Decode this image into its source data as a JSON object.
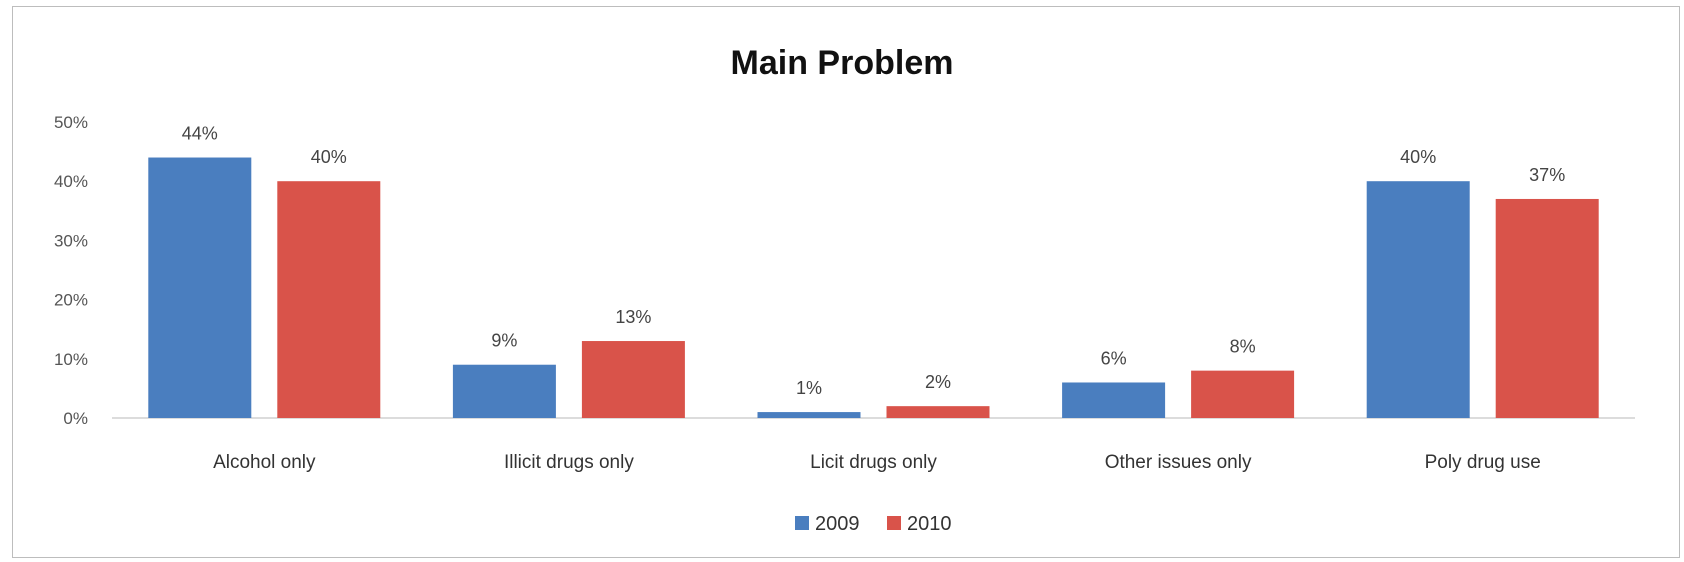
{
  "chart_data": {
    "type": "bar",
    "title": "Main Problem",
    "categories": [
      "Alcohol only",
      "Illicit drugs only",
      "Licit drugs only",
      "Other  issues only",
      "Poly drug use"
    ],
    "series": [
      {
        "name": "2009",
        "color": "#4a7ebf",
        "values": [
          44,
          9,
          1,
          6,
          40
        ],
        "labels": [
          "44%",
          "9%",
          "1%",
          "6%",
          "40%"
        ]
      },
      {
        "name": "2010",
        "color": "#d9534a",
        "values": [
          40,
          13,
          2,
          8,
          37
        ],
        "labels": [
          "40%",
          "13%",
          "2%",
          "8%",
          "37%"
        ]
      }
    ],
    "yticks": [
      "0%",
      "10%",
      "20%",
      "30%",
      "40%",
      "50%"
    ],
    "ylim": [
      0,
      50
    ],
    "legend_position": "bottom",
    "grid": false
  }
}
